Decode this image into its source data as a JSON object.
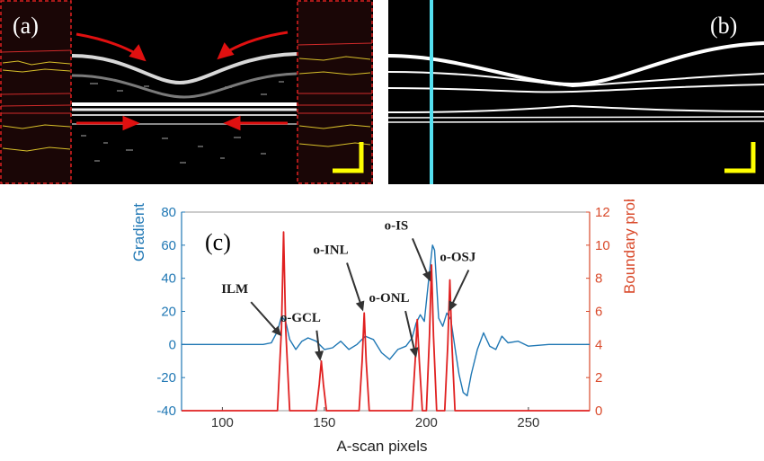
{
  "panels": {
    "a": {
      "label": "(a)"
    },
    "b": {
      "label": "(b)"
    },
    "c": {
      "label": "(c)"
    }
  },
  "colors": {
    "left_axis": "#1f77b4",
    "right_axis": "#d94a2b",
    "gradient_line": "#1f77b4",
    "probability_line": "#e02020",
    "scale_bar": "#ffff00",
    "cursor_line": "#55e0f0",
    "arrow_red": "#e01010",
    "annotation_arrow": "#333333"
  },
  "chart_data": {
    "type": "line",
    "xlabel": "A-scan pixels",
    "ylabel_left": "Gradient signal",
    "ylabel_right": "Boundary  probability (%)",
    "xlim": [
      80,
      280
    ],
    "ylim_left": [
      -40,
      80
    ],
    "ylim_right": [
      0,
      12
    ],
    "xticks": [
      100,
      150,
      200,
      250
    ],
    "yticks_left": [
      -40,
      -20,
      0,
      20,
      40,
      60,
      80
    ],
    "yticks_right": [
      0,
      2,
      4,
      6,
      8,
      10,
      12
    ],
    "annotations": [
      {
        "text": "ILM",
        "x": 129,
        "y": 5
      },
      {
        "text": "o-GCL",
        "x": 148,
        "y": -10
      },
      {
        "text": "o-INL",
        "x": 169,
        "y": 20
      },
      {
        "text": "o-ONL",
        "x": 195,
        "y": -8
      },
      {
        "text": "o-IS",
        "x": 202,
        "y": 38
      },
      {
        "text": "o-OSJ",
        "x": 211,
        "y": 20
      }
    ],
    "series": [
      {
        "axis": "left",
        "x": [
          80,
          110,
          120,
          124,
          127,
          129,
          131,
          133,
          136,
          139,
          142,
          146,
          150,
          154,
          158,
          162,
          166,
          170,
          174,
          178,
          182,
          186,
          190,
          193,
          195,
          197,
          199,
          201,
          203,
          204,
          206,
          208,
          210,
          212,
          214,
          216,
          218,
          220,
          222,
          225,
          228,
          231,
          234,
          237,
          240,
          245,
          250,
          260,
          270,
          280
        ],
        "y": [
          0,
          0,
          0,
          1,
          8,
          17,
          14,
          3,
          -3,
          2,
          4,
          2,
          -3,
          -2,
          2,
          -3,
          0,
          5,
          3,
          -5,
          -9,
          -3,
          -1,
          4,
          13,
          18,
          14,
          38,
          60,
          57,
          16,
          11,
          19,
          15,
          -2,
          -18,
          -29,
          -31,
          -18,
          -3,
          7,
          -1,
          -3,
          5,
          1,
          2,
          -1,
          0,
          0,
          0
        ]
      },
      {
        "axis": "right",
        "x": [
          80,
          127,
          129,
          130,
          131,
          133,
          146,
          147.5,
          148.5,
          149.5,
          151,
          167,
          168.5,
          169.5,
          170.5,
          172,
          193,
          194.5,
          195.5,
          196.5,
          198,
          200,
          201.5,
          202.5,
          203.5,
          205,
          209,
          210.5,
          211.5,
          212.5,
          214,
          280
        ],
        "y": [
          0,
          0,
          5,
          10.8,
          5,
          0,
          0,
          1.6,
          3,
          1.6,
          0,
          0,
          3,
          5.9,
          3,
          0,
          0,
          3,
          5.5,
          3,
          0,
          0,
          4.5,
          8.8,
          4.5,
          0,
          0,
          4,
          7.9,
          4,
          0,
          0
        ]
      }
    ]
  }
}
